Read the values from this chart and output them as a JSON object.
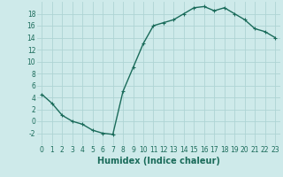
{
  "x": [
    0,
    1,
    2,
    3,
    4,
    5,
    6,
    7,
    8,
    9,
    10,
    11,
    12,
    13,
    14,
    15,
    16,
    17,
    18,
    19,
    20,
    21,
    22,
    23
  ],
  "y": [
    4.5,
    3.0,
    1.0,
    0.0,
    -0.5,
    -1.5,
    -2.0,
    -2.2,
    5.0,
    9.0,
    13.0,
    16.0,
    16.5,
    17.0,
    18.0,
    19.0,
    19.2,
    18.5,
    19.0,
    18.0,
    17.0,
    15.5,
    15.0,
    14.0
  ],
  "line_color": "#1a6b5a",
  "marker": "+",
  "marker_size": 3.5,
  "bg_color": "#ceeaea",
  "grid_color": "#aed4d4",
  "xlabel": "Humidex (Indice chaleur)",
  "ylabel": "",
  "xlim": [
    -0.5,
    23.5
  ],
  "ylim": [
    -4,
    20
  ],
  "yticks": [
    -2,
    0,
    2,
    4,
    6,
    8,
    10,
    12,
    14,
    16,
    18
  ],
  "xticks": [
    0,
    1,
    2,
    3,
    4,
    5,
    6,
    7,
    8,
    9,
    10,
    11,
    12,
    13,
    14,
    15,
    16,
    17,
    18,
    19,
    20,
    21,
    22,
    23
  ],
  "tick_fontsize": 5.5,
  "xlabel_fontsize": 7.0,
  "line_width": 1.0
}
